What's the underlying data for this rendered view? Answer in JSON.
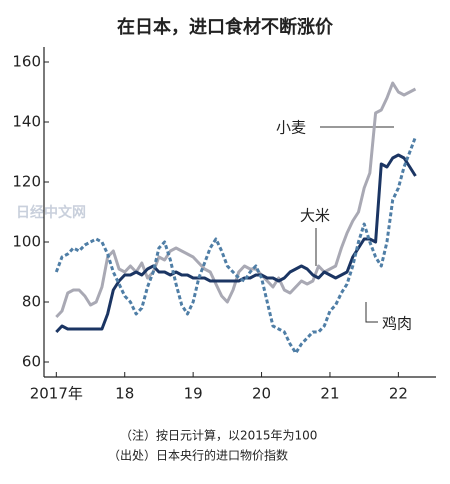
{
  "chart_data": {
    "type": "line",
    "title": "在日本，进口食材不断涨价",
    "annotations": [
      "小麦",
      "大米",
      "鸡肉"
    ],
    "watermark": "日经中文网",
    "notes": [
      "（注）按日元计算，以2015年为100",
      "（出处）日本央行的进口物价指数"
    ],
    "x": [
      2017.0,
      2017.083,
      2017.167,
      2017.25,
      2017.333,
      2017.417,
      2017.5,
      2017.583,
      2017.667,
      2017.75,
      2017.833,
      2017.917,
      2018.0,
      2018.083,
      2018.167,
      2018.25,
      2018.333,
      2018.417,
      2018.5,
      2018.583,
      2018.667,
      2018.75,
      2018.833,
      2018.917,
      2019.0,
      2019.083,
      2019.167,
      2019.25,
      2019.333,
      2019.417,
      2019.5,
      2019.583,
      2019.667,
      2019.75,
      2019.833,
      2019.917,
      2020.0,
      2020.083,
      2020.167,
      2020.25,
      2020.333,
      2020.417,
      2020.5,
      2020.583,
      2020.667,
      2020.75,
      2020.833,
      2020.917,
      2021.0,
      2021.083,
      2021.167,
      2021.25,
      2021.333,
      2021.417,
      2021.5,
      2021.583,
      2021.667,
      2021.75,
      2021.833,
      2021.917,
      2022.0,
      2022.083,
      2022.167,
      2022.25
    ],
    "series": [
      {
        "name": "小麦",
        "color": "#a9a9b4",
        "dash": false,
        "values": [
          75,
          77,
          83,
          84,
          84,
          82,
          79,
          80,
          85,
          95,
          97,
          91,
          90,
          92,
          90,
          93,
          88,
          90,
          95,
          94,
          97,
          98,
          97,
          96,
          95,
          93,
          91,
          90,
          86,
          82,
          80,
          84,
          90,
          92,
          91,
          91,
          89,
          87,
          85,
          88,
          84,
          83,
          85,
          87,
          86,
          87,
          92,
          90,
          91,
          92,
          98,
          103,
          107,
          110,
          118,
          123,
          143,
          144,
          148,
          153,
          150,
          149,
          150,
          151
        ]
      },
      {
        "name": "大米",
        "color": "#1b3563",
        "dash": false,
        "values": [
          70,
          72,
          71,
          71,
          71,
          71,
          71,
          71,
          71,
          76,
          84,
          87,
          89,
          89,
          90,
          89,
          91,
          92,
          90,
          90,
          89,
          90,
          89,
          89,
          88,
          88,
          88,
          87,
          87,
          87,
          87,
          87,
          87,
          88,
          88,
          89,
          89,
          88,
          88,
          87,
          88,
          90,
          91,
          92,
          91,
          89,
          88,
          90,
          89,
          88,
          89,
          90,
          95,
          98,
          101,
          101,
          100,
          126,
          125,
          128,
          129,
          128,
          125,
          122
        ]
      },
      {
        "name": "鸡肉",
        "color": "#4f7ea6",
        "dash": true,
        "values": [
          90,
          95,
          96,
          98,
          97,
          99,
          100,
          101,
          100,
          96,
          90,
          86,
          82,
          80,
          76,
          78,
          85,
          90,
          98,
          100,
          94,
          86,
          79,
          76,
          80,
          88,
          93,
          98,
          101,
          97,
          92,
          90,
          88,
          87,
          90,
          92,
          88,
          80,
          72,
          71,
          70,
          66,
          63,
          66,
          68,
          70,
          70,
          72,
          77,
          79,
          83,
          86,
          92,
          100,
          106,
          100,
          95,
          92,
          100,
          114,
          118,
          125,
          130,
          135
        ]
      }
    ],
    "xlim": [
      2016.82,
      2022.55
    ],
    "xticks": [
      {
        "value": 2017,
        "label": "2017年"
      },
      {
        "value": 2018,
        "label": "18"
      },
      {
        "value": 2019,
        "label": "19"
      },
      {
        "value": 2020,
        "label": "20"
      },
      {
        "value": 2021,
        "label": "21"
      },
      {
        "value": 2022,
        "label": "22"
      }
    ],
    "ylim": [
      55,
      165
    ],
    "yticks": [
      60,
      80,
      100,
      120,
      140,
      160
    ]
  }
}
